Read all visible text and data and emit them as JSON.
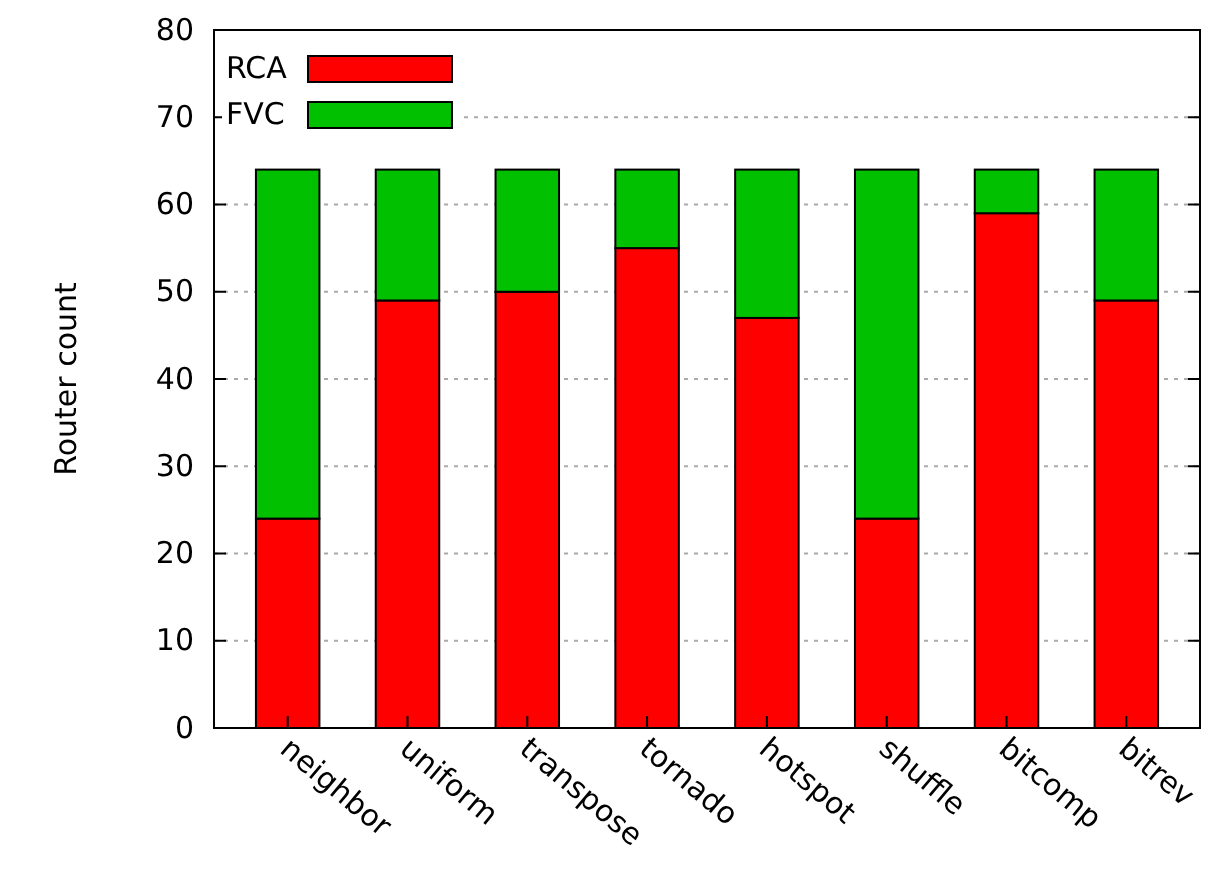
{
  "chart_data": {
    "type": "bar",
    "ylabel": "Router count",
    "categories": [
      "neighbor",
      "uniform",
      "transpose",
      "tornado",
      "hotspot",
      "shuffle",
      "bitcomp",
      "bitrev"
    ],
    "series": [
      {
        "name": "RCA",
        "color": "#ff0000",
        "values": [
          24,
          49,
          50,
          55,
          47,
          24,
          59,
          49
        ]
      },
      {
        "name": "FVC",
        "color": "#00c000",
        "values": [
          40,
          15,
          14,
          9,
          17,
          40,
          5,
          15
        ]
      }
    ],
    "stacked": true,
    "ylim": [
      0,
      80
    ],
    "yticks": [
      0,
      10,
      20,
      30,
      40,
      50,
      60,
      70,
      80
    ],
    "grid": "y",
    "legend": "top left"
  }
}
